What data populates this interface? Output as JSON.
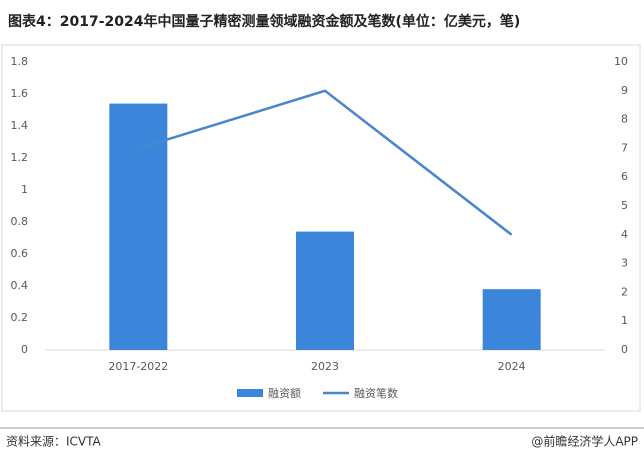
{
  "chart_data": {
    "type": "bar-line",
    "title": "图表4：2017-2024年中国量子精密测量领域融资金额及笔数(单位：亿美元，笔)",
    "categories": [
      "2017-2022",
      "2023",
      "2024"
    ],
    "series": [
      {
        "name": "融资额",
        "type": "bar",
        "color": "#3b85db",
        "values": [
          1.54,
          0.74,
          0.38
        ]
      },
      {
        "name": "融资笔数",
        "type": "line",
        "color": "#4a86cc",
        "axis": "y2",
        "values": [
          7,
          9,
          4
        ]
      }
    ],
    "ylim": [
      0,
      1.8
    ],
    "yticks": [
      0,
      0.2,
      0.4,
      0.6,
      0.8,
      1,
      1.2,
      1.4,
      1.6,
      1.8
    ],
    "y2lim": [
      0,
      10
    ],
    "y2ticks": [
      0,
      1,
      2,
      3,
      4,
      5,
      6,
      7,
      8,
      9,
      10
    ],
    "legend": "bottom"
  },
  "footer": {
    "source": "资料来源：ICVTA",
    "brand": "@前瞻经济学人APP"
  }
}
